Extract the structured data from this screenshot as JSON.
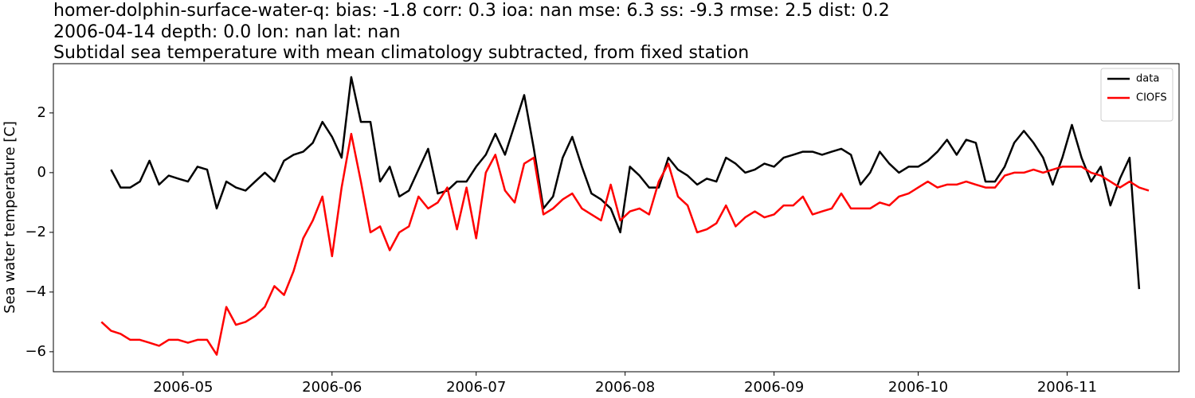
{
  "chart_data": {
    "type": "line",
    "title_lines": [
      "homer-dolphin-surface-water-q: bias: -1.8  corr: 0.3  ioa: nan  mse: 6.3  ss: -9.3  rmse: 2.5  dist: 0.2",
      "2006-04-14 depth: 0.0 lon: nan lat: nan",
      "Subtidal sea temperature with mean climatology subtracted, from fixed station"
    ],
    "ylabel": "Sea water temperature [C]",
    "x": [
      104,
      106,
      108,
      110,
      112,
      114,
      116,
      118,
      120,
      122,
      124,
      126,
      128,
      130,
      132,
      134,
      136,
      138,
      140,
      142,
      144,
      146,
      148,
      150,
      152,
      154,
      156,
      158,
      160,
      162,
      164,
      166,
      168,
      170,
      172,
      174,
      176,
      178,
      180,
      182,
      184,
      186,
      188,
      190,
      192,
      194,
      196,
      198,
      200,
      202,
      204,
      206,
      208,
      210,
      212,
      214,
      216,
      218,
      220,
      222,
      224,
      226,
      228,
      230,
      232,
      234,
      236,
      238,
      240,
      242,
      244,
      246,
      248,
      250,
      252,
      254,
      256,
      258,
      260,
      262,
      264,
      266,
      268,
      270,
      272,
      274,
      276,
      278,
      280,
      282,
      284,
      286,
      288,
      290,
      292,
      294,
      296,
      298,
      300,
      302,
      304,
      306,
      308,
      310,
      312,
      314,
      316,
      318,
      320,
      322
    ],
    "series": [
      {
        "name": "data",
        "color": "#000000",
        "values": [
          null,
          0.1,
          -0.5,
          -0.5,
          -0.3,
          0.4,
          -0.4,
          -0.1,
          -0.2,
          -0.3,
          0.2,
          0.1,
          -1.2,
          -0.3,
          -0.5,
          -0.6,
          -0.3,
          0,
          -0.3,
          0.4,
          0.6,
          0.7,
          1.0,
          1.7,
          1.2,
          0.5,
          3.2,
          1.7,
          1.7,
          -0.3,
          0.2,
          -0.8,
          -0.6,
          0.1,
          0.8,
          -0.7,
          -0.6,
          -0.3,
          -0.3,
          0.2,
          0.6,
          1.3,
          0.6,
          1.6,
          2.6,
          0.8,
          -1.2,
          -0.8,
          0.5,
          1.2,
          0.2,
          -0.7,
          -0.9,
          -1.2,
          -2.0,
          0.2,
          -0.1,
          -0.5,
          -0.5,
          0.5,
          0.1,
          -0.1,
          -0.4,
          -0.2,
          -0.3,
          0.5,
          0.3,
          0,
          0.1,
          0.3,
          0.2,
          0.5,
          0.6,
          0.7,
          0.7,
          0.6,
          0.7,
          0.8,
          0.6,
          -0.4,
          0,
          0.7,
          0.3,
          0,
          0.2,
          0.2,
          0.4,
          0.7,
          1.1,
          0.6,
          1.1,
          1.0,
          -0.3,
          -0.3,
          0.2,
          1.0,
          1.4,
          1.0,
          0.5,
          -0.4,
          0.5,
          1.6,
          0.5,
          -0.3,
          0.2,
          -1.1,
          -0.2,
          0.5,
          -3.9,
          null
        ]
      },
      {
        "name": "CIOFS",
        "color": "#ff0000",
        "values": [
          -5.0,
          -5.3,
          -5.4,
          -5.6,
          -5.6,
          -5.7,
          -5.8,
          -5.6,
          -5.6,
          -5.7,
          -5.6,
          -5.6,
          -6.1,
          -4.5,
          -5.1,
          -5.0,
          -4.8,
          -4.5,
          -3.8,
          -4.1,
          -3.3,
          -2.2,
          -1.6,
          -0.8,
          -2.8,
          -0.5,
          1.3,
          -0.3,
          -2.0,
          -1.8,
          -2.6,
          -2.0,
          -1.8,
          -0.8,
          -1.2,
          -1.0,
          -0.5,
          -1.9,
          -0.5,
          -2.2,
          0,
          0.6,
          -0.6,
          -1.0,
          0.3,
          0.5,
          -1.4,
          -1.2,
          -0.9,
          -0.7,
          -1.2,
          -1.4,
          -1.6,
          -0.4,
          -1.6,
          -1.3,
          -1.2,
          -1.4,
          -0.3,
          0.3,
          -0.8,
          -1.1,
          -2.0,
          -1.9,
          -1.7,
          -1.1,
          -1.8,
          -1.5,
          -1.3,
          -1.5,
          -1.4,
          -1.1,
          -1.1,
          -0.8,
          -1.4,
          -1.3,
          -1.2,
          -0.7,
          -1.2,
          -1.2,
          -1.2,
          -1.0,
          -1.1,
          -0.8,
          -0.7,
          -0.5,
          -0.3,
          -0.5,
          -0.4,
          -0.4,
          -0.3,
          -0.4,
          -0.5,
          -0.5,
          -0.1,
          0,
          0,
          0.1,
          0,
          0.1,
          0.2,
          0.2,
          0.2,
          0,
          -0.1,
          -0.3,
          -0.5,
          -0.3,
          -0.5,
          -0.6
        ]
      }
    ],
    "xlim": [
      94,
      328.3
    ],
    "xticks": [
      {
        "value": 121,
        "label": "2006-05"
      },
      {
        "value": 152,
        "label": "2006-06"
      },
      {
        "value": 182,
        "label": "2006-07"
      },
      {
        "value": 213,
        "label": "2006-08"
      },
      {
        "value": 244,
        "label": "2006-09"
      },
      {
        "value": 274,
        "label": "2006-10"
      },
      {
        "value": 305,
        "label": "2006-11"
      }
    ],
    "ylim": [
      -6.67,
      3.65
    ],
    "yticks": [
      {
        "value": -6,
        "label": "−6"
      },
      {
        "value": -4,
        "label": "−4"
      },
      {
        "value": -2,
        "label": "−2"
      },
      0,
      2
    ],
    "grid": false,
    "legend": "upper right"
  }
}
